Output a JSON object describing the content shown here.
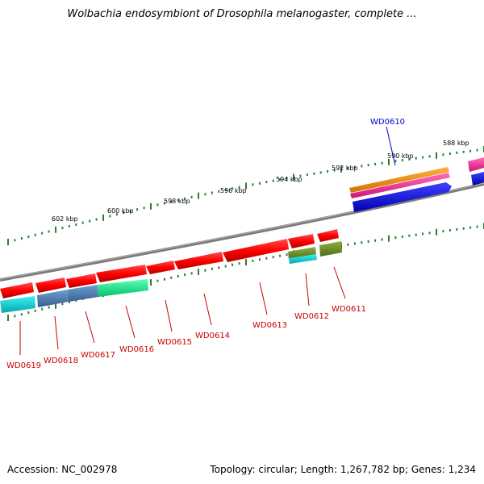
{
  "title": "Wolbachia endosymbiont of Drosophila melanogaster, complete ...",
  "footer": {
    "accession": "Accession: NC_002978",
    "summary": "Topology: circular; Length: 1,267,782 bp; Genes: 1,234"
  },
  "colors": {
    "backbone": "#808080",
    "tick": "#2e7d32",
    "gene_label_bottom": "#cc0000",
    "gene_label_top": "#0000cc",
    "cds_red": "#ff0000",
    "cog_orange": "#ff8c00",
    "cog_magenta": "#ff1493",
    "cog_blue": "#0000ff",
    "cog_teal": "#00cccc",
    "cog_steel": "#4a7fb5",
    "cog_green": "#00ff88",
    "cog_olive": "#6b8e23"
  },
  "scale_labels": [
    {
      "text": "602 kbp",
      "bp": 602000
    },
    {
      "text": "600 kbp",
      "bp": 600000
    },
    {
      "text": "598 kbp",
      "bp": 598000
    },
    {
      "text": "596 kbp",
      "bp": 596000
    },
    {
      "text": "594 kbp",
      "bp": 594000
    },
    {
      "text": "592 kbp",
      "bp": 592000
    },
    {
      "text": "590 kbp",
      "bp": 590000
    },
    {
      "text": "588 kbp",
      "bp": 588000
    }
  ],
  "gene_labels": [
    {
      "id": "WD0619",
      "side": "bottom"
    },
    {
      "id": "WD0618",
      "side": "bottom"
    },
    {
      "id": "WD0617",
      "side": "bottom"
    },
    {
      "id": "WD0616",
      "side": "bottom"
    },
    {
      "id": "WD0615",
      "side": "bottom"
    },
    {
      "id": "WD0614",
      "side": "bottom"
    },
    {
      "id": "WD0613",
      "side": "bottom"
    },
    {
      "id": "WD0612",
      "side": "bottom"
    },
    {
      "id": "WD0611",
      "side": "bottom"
    },
    {
      "id": "WD0610",
      "side": "top"
    }
  ]
}
